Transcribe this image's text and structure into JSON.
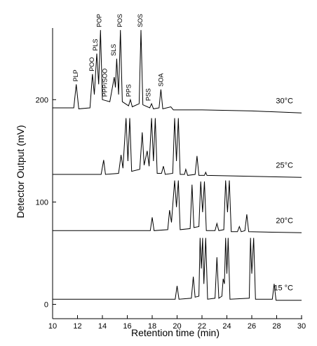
{
  "chart_data": {
    "type": "line",
    "xlabel": "Retention time (min)",
    "ylabel": "Detector Output (mV)",
    "xlim": [
      10,
      30
    ],
    "xticks": [
      10,
      12,
      14,
      16,
      18,
      20,
      22,
      24,
      26,
      28,
      30
    ],
    "ylim": [
      -14,
      270
    ],
    "yticks": [
      0,
      100,
      200
    ],
    "color": "#000000",
    "series": [
      {
        "name": "30°C",
        "x": [
          10,
          11.7,
          11.9,
          12.1,
          13.0,
          13.2,
          13.35,
          13.55,
          13.7,
          13.85,
          14.0,
          14.6,
          14.95,
          15.05,
          15.15,
          15.3,
          15.45,
          15.6,
          16.1,
          16.25,
          16.4,
          16.95,
          17.1,
          17.25,
          17.8,
          17.95,
          18.1,
          18.55,
          18.7,
          18.85,
          19.5,
          19.7,
          22,
          26,
          30
        ],
        "values": [
          192,
          192,
          215,
          191,
          192,
          225,
          205,
          245,
          215,
          268,
          200,
          198,
          222,
          212,
          240,
          205,
          268,
          198,
          194,
          200,
          193,
          196,
          268,
          195,
          192,
          196,
          191,
          192,
          210,
          191,
          193,
          190,
          190,
          189,
          187
        ]
      },
      {
        "name": "25°C",
        "x": [
          10,
          13.9,
          14.1,
          14.25,
          15.3,
          15.5,
          15.65,
          15.9,
          16.05,
          16.2,
          16.35,
          17.0,
          17.2,
          17.35,
          17.6,
          17.75,
          17.95,
          18.1,
          18.25,
          18.4,
          18.75,
          18.9,
          19.05,
          19.65,
          19.8,
          19.95,
          20.1,
          20.25,
          20.6,
          20.7,
          20.85,
          21.45,
          21.6,
          21.75,
          22.2,
          22.3,
          22.4,
          30
        ],
        "values": [
          127,
          127,
          141,
          127,
          128,
          146,
          133,
          182,
          140,
          182,
          130,
          132,
          168,
          136,
          150,
          135,
          182,
          140,
          182,
          128,
          128,
          135,
          127,
          128,
          182,
          140,
          182,
          127,
          127,
          132,
          126,
          127,
          145,
          126,
          126,
          129,
          126,
          124
        ]
      },
      {
        "name": "20°C",
        "x": [
          10,
          17.85,
          18.0,
          18.15,
          19.25,
          19.4,
          19.55,
          19.8,
          19.95,
          20.1,
          20.25,
          21.05,
          21.2,
          21.35,
          21.75,
          21.9,
          22.05,
          22.2,
          22.35,
          23.05,
          23.2,
          23.35,
          23.75,
          23.9,
          24.05,
          24.2,
          24.35,
          24.85,
          25.0,
          25.15,
          25.45,
          25.6,
          25.75,
          30
        ],
        "values": [
          72,
          72,
          85,
          72,
          73,
          92,
          80,
          121,
          95,
          121,
          73,
          74,
          117,
          75,
          76,
          120,
          90,
          120,
          72,
          72,
          79,
          72,
          73,
          121,
          90,
          121,
          71,
          71,
          76,
          71,
          72,
          88,
          71,
          70
        ]
      },
      {
        "name": "15 °C",
        "x": [
          10,
          19.85,
          20.0,
          20.15,
          21.15,
          21.3,
          21.45,
          21.75,
          21.85,
          21.95,
          22.05,
          22.15,
          22.3,
          22.45,
          23.05,
          23.2,
          23.35,
          23.6,
          23.7,
          23.8,
          23.9,
          24.0,
          24.1,
          24.25,
          25.8,
          25.9,
          26.0,
          26.15,
          26.3,
          27.65,
          27.8,
          27.95,
          30
        ],
        "values": [
          5,
          5,
          18,
          5,
          6,
          27,
          7,
          8,
          65,
          35,
          65,
          20,
          65,
          5,
          6,
          46,
          6,
          8,
          25,
          20,
          65,
          30,
          65,
          5,
          6,
          65,
          30,
          65,
          5,
          5,
          20,
          4,
          4
        ]
      }
    ],
    "peak_labels": [
      {
        "text": "PLP",
        "x": 11.85
      },
      {
        "text": "POO",
        "x": 13.15
      },
      {
        "text": "PLS",
        "x": 13.45
      },
      {
        "text": "POP",
        "x": 13.75
      },
      {
        "text": "PPP/SOO",
        "x": 14.2
      },
      {
        "text": "SLS",
        "x": 14.9
      },
      {
        "text": "POS",
        "x": 15.4
      },
      {
        "text": "PPS",
        "x": 16.1
      },
      {
        "text": "SOS",
        "x": 17.05
      },
      {
        "text": "PSS",
        "x": 17.7
      },
      {
        "text": "SOA",
        "x": 18.7
      }
    ]
  }
}
